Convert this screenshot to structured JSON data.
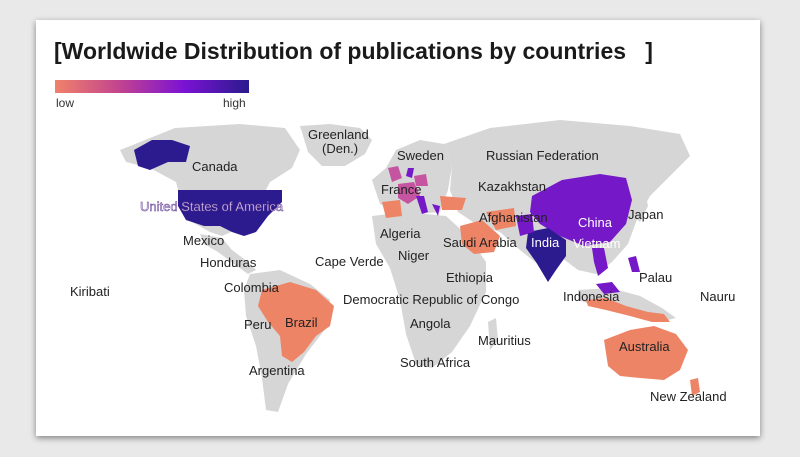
{
  "title": "[Worldwide Distribution of publications by countries   ]",
  "legend": {
    "low_label": "low",
    "high_label": "high",
    "gradient": [
      "#f0826a",
      "#c2438f",
      "#7a12d4",
      "#2a1a8c"
    ]
  },
  "colors": {
    "land": "#d6d6d6",
    "tier_low": "#ee8466",
    "tier_mid": "#c555a0",
    "tier_high": "#7518c8",
    "tier_top": "#2c1a8f"
  },
  "labels": {
    "greenland": "Greenland\n(Den.)",
    "sweden": "Sweden",
    "russia": "Russian Federation",
    "canada": "Canada",
    "france": "France",
    "kazakhstan": "Kazakhstan",
    "usa": "United States of America",
    "afghanistan": "Afghanistan",
    "china": "China",
    "japan": "Japan",
    "algeria": "Algeria",
    "saudi": "Saudi Arabia",
    "india": "India",
    "vietnam": "Vietnam",
    "mexico": "Mexico",
    "honduras": "Honduras",
    "capeverde": "Cape Verde",
    "niger": "Niger",
    "ethiopia": "Ethiopia",
    "palau": "Palau",
    "kiribati": "Kiribati",
    "colombia": "Colombia",
    "drc": "Democratic Republic of Congo",
    "indonesia": "Indonesia",
    "nauru": "Nauru",
    "peru": "Peru",
    "brazil": "Brazil",
    "angola": "Angola",
    "mauritius": "Mauritius",
    "australia": "Australia",
    "southafrica": "South Africa",
    "argentina": "Argentina",
    "newzealand": "New Zealand"
  }
}
